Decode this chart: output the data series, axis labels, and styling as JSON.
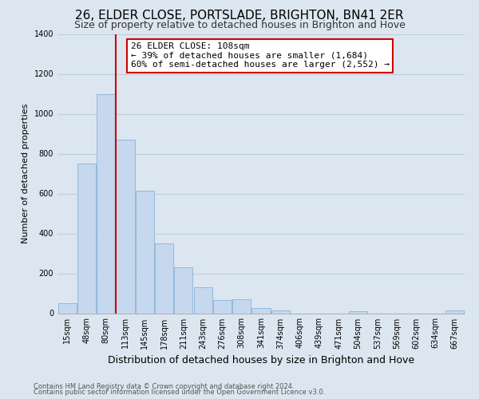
{
  "title": "26, ELDER CLOSE, PORTSLADE, BRIGHTON, BN41 2ER",
  "subtitle": "Size of property relative to detached houses in Brighton and Hove",
  "xlabel": "Distribution of detached houses by size in Brighton and Hove",
  "ylabel": "Number of detached properties",
  "footnote1": "Contains HM Land Registry data © Crown copyright and database right 2024.",
  "footnote2": "Contains public sector information licensed under the Open Government Licence v3.0.",
  "bar_labels": [
    "15sqm",
    "48sqm",
    "80sqm",
    "113sqm",
    "145sqm",
    "178sqm",
    "211sqm",
    "243sqm",
    "276sqm",
    "308sqm",
    "341sqm",
    "374sqm",
    "406sqm",
    "439sqm",
    "471sqm",
    "504sqm",
    "537sqm",
    "569sqm",
    "602sqm",
    "634sqm",
    "667sqm"
  ],
  "bar_values": [
    50,
    750,
    1100,
    870,
    615,
    350,
    230,
    130,
    65,
    70,
    25,
    15,
    0,
    0,
    0,
    10,
    0,
    0,
    0,
    0,
    15
  ],
  "bar_color": "#c5d8ee",
  "bar_edge_color": "#7baad4",
  "vline_x": 2.5,
  "vline_color": "#cc0000",
  "annotation_title": "26 ELDER CLOSE: 108sqm",
  "annotation_line1": "← 39% of detached houses are smaller (1,684)",
  "annotation_line2": "60% of semi-detached houses are larger (2,552) →",
  "annotation_box_facecolor": "white",
  "annotation_box_edgecolor": "#cc0000",
  "ylim": [
    0,
    1400
  ],
  "yticks": [
    0,
    200,
    400,
    600,
    800,
    1000,
    1200,
    1400
  ],
  "background_color": "#dce6f0",
  "plot_background": "#dce6f0",
  "grid_color": "#c0cdd8",
  "title_fontsize": 11,
  "subtitle_fontsize": 9,
  "ylabel_fontsize": 8,
  "xlabel_fontsize": 9,
  "tick_fontsize": 7,
  "annot_fontsize": 8,
  "footnote_fontsize": 6
}
